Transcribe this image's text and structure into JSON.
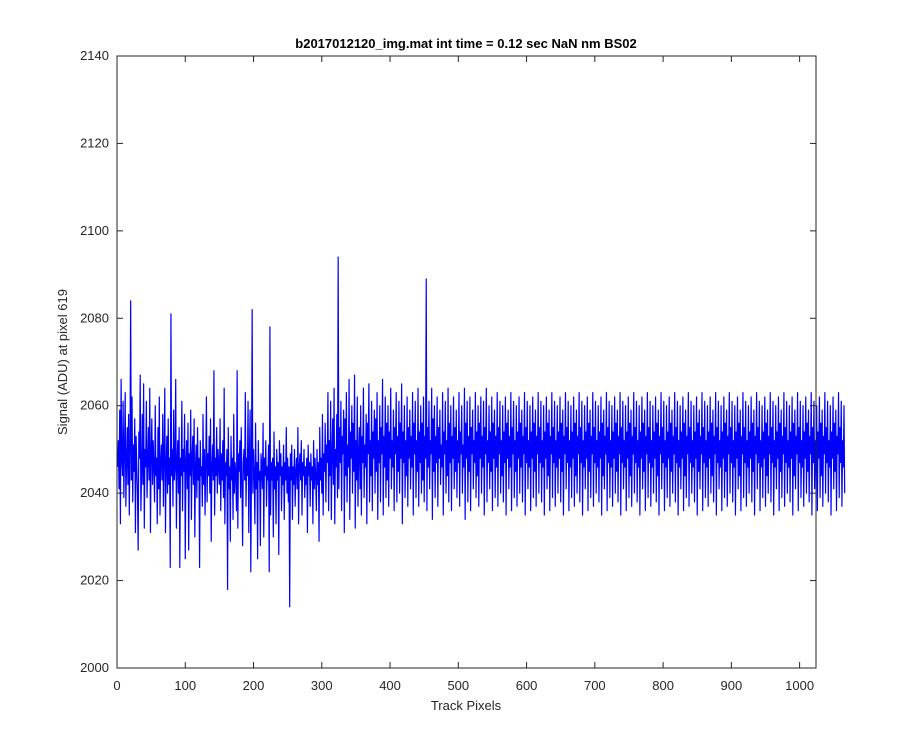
{
  "chart_data": {
    "type": "line",
    "title": "b2017012120_img.mat int time = 0.12 sec  NaN nm BS02",
    "xlabel": "Track Pixels",
    "ylabel": "Signal (ADU) at pixel 619",
    "xlim": [
      0,
      1024
    ],
    "ylim": [
      2000,
      2140
    ],
    "xticks": [
      0,
      100,
      200,
      300,
      400,
      500,
      600,
      700,
      800,
      900,
      1000
    ],
    "yticks": [
      2000,
      2020,
      2040,
      2060,
      2080,
      2100,
      2120,
      2140
    ],
    "grid": false,
    "legend": "none",
    "series": [
      {
        "color": "#0000ff",
        "x_start": 1,
        "x_step": 1,
        "values": [
          2046,
          2052,
          2041,
          2059,
          2033,
          2066,
          2048,
          2044,
          2061,
          2039,
          2050,
          2063,
          2037,
          2047,
          2055,
          2042,
          2058,
          2035,
          2049,
          2084,
          2043,
          2062,
          2038,
          2051,
          2045,
          2057,
          2031,
          2053,
          2046,
          2040,
          2027,
          2054,
          2048,
          2067,
          2036,
          2044,
          2058,
          2042,
          2065,
          2032,
          2050,
          2046,
          2061,
          2039,
          2047,
          2055,
          2043,
          2064,
          2031,
          2049,
          2057,
          2042,
          2052,
          2046,
          2038,
          2060,
          2044,
          2048,
          2033,
          2055,
          2041,
          2062,
          2035,
          2047,
          2051,
          2043,
          2058,
          2037,
          2049,
          2064,
          2031,
          2046,
          2053,
          2040,
          2057,
          2042,
          2048,
          2023,
          2081,
          2044,
          2050,
          2037,
          2059,
          2043,
          2046,
          2066,
          2032,
          2047,
          2052,
          2040,
          2055,
          2023,
          2048,
          2044,
          2061,
          2036,
          2050,
          2045,
          2058,
          2025,
          2047,
          2052,
          2041,
          2056,
          2027,
          2049,
          2044,
          2059,
          2034,
          2048,
          2053,
          2042,
          2057,
          2030,
          2046,
          2051,
          2039,
          2055,
          2043,
          2048,
          2023,
          2052,
          2044,
          2046,
          2037,
          2058,
          2042,
          2050,
          2035,
          2047,
          2062,
          2038,
          2049,
          2044,
          2053,
          2040,
          2057,
          2029,
          2046,
          2051,
          2043,
          2068,
          2035,
          2048,
          2044,
          2055,
          2040,
          2050,
          2046,
          2042,
          2057,
          2036,
          2049,
          2043,
          2052,
          2039,
          2064,
          2033,
          2047,
          2044,
          2050,
          2018,
          2055,
          2041,
          2046,
          2029,
          2053,
          2043,
          2048,
          2034,
          2058,
          2040,
          2047,
          2044,
          2036,
          2068,
          2032,
          2049,
          2045,
          2052,
          2039,
          2055,
          2042,
          2028,
          2047,
          2050,
          2043,
          2063,
          2037,
          2048,
          2044,
          2061,
          2031,
          2049,
          2059,
          2022,
          2046,
          2082,
          2040,
          2050,
          2044,
          2033,
          2056,
          2041,
          2047,
          2025,
          2052,
          2043,
          2045,
          2028,
          2049,
          2046,
          2041,
          2056,
          2030,
          2048,
          2044,
          2052,
          2037,
          2046,
          2043,
          2051,
          2022,
          2078,
          2035,
          2047,
          2043,
          2048,
          2030,
          2054,
          2041,
          2046,
          2033,
          2050,
          2043,
          2047,
          2026,
          2052,
          2044,
          2049,
          2036,
          2046,
          2042,
          2051,
          2034,
          2047,
          2043,
          2055,
          2040,
          2048,
          2038,
          2046,
          2014,
          2049,
          2043,
          2051,
          2034,
          2046,
          2042,
          2050,
          2037,
          2045,
          2048,
          2041,
          2055,
          2033,
          2046,
          2049,
          2043,
          2052,
          2035,
          2047,
          2044,
          2050,
          2039,
          2046,
          2042,
          2048,
          2031,
          2051,
          2044,
          2047,
          2037,
          2049,
          2043,
          2046,
          2033,
          2052,
          2041,
          2048,
          2044,
          2036,
          2050,
          2042,
          2047,
          2029,
          2055,
          2043,
          2048,
          2040,
          2058,
          2035,
          2049,
          2045,
          2056,
          2038,
          2051,
          2047,
          2063,
          2036,
          2052,
          2044,
          2061,
          2034,
          2049,
          2057,
          2042,
          2064,
          2033,
          2050,
          2046,
          2058,
          2039,
          2094,
          2041,
          2055,
          2047,
          2061,
          2036,
          2053,
          2049,
          2059,
          2031,
          2057,
          2044,
          2063,
          2038,
          2051,
          2046,
          2066,
          2034,
          2054,
          2048,
          2060,
          2040,
          2056,
          2045,
          2067,
          2032,
          2052,
          2043,
          2062,
          2037,
          2049,
          2055,
          2041,
          2060,
          2035,
          2053,
          2047,
          2064,
          2039,
          2051,
          2046,
          2058,
          2033,
          2056,
          2049,
          2065,
          2038,
          2052,
          2044,
          2061,
          2036,
          2054,
          2048,
          2059,
          2040,
          2057,
          2045,
          2063,
          2034,
          2052,
          2047,
          2060,
          2038,
          2055,
          2049,
          2066,
          2035,
          2053,
          2046,
          2062,
          2039,
          2056,
          2043,
          2060,
          2037,
          2054,
          2048,
          2064,
          2041,
          2052,
          2046,
          2059,
          2036,
          2055,
          2049,
          2063,
          2038,
          2053,
          2045,
          2061,
          2040,
          2056,
          2048,
          2065,
          2033,
          2054,
          2047,
          2060,
          2039,
          2052,
          2044,
          2062,
          2037,
          2055,
          2048,
          2059,
          2041,
          2053,
          2046,
          2063,
          2035,
          2056,
          2049,
          2061,
          2039,
          2052,
          2045,
          2064,
          2037,
          2054,
          2047,
          2060,
          2040,
          2056,
          2043,
          2062,
          2038,
          2053,
          2048,
          2089,
          2036,
          2055,
          2046,
          2061,
          2041,
          2052,
          2049,
          2064,
          2034,
          2057,
          2045,
          2060,
          2039,
          2053,
          2047,
          2062,
          2037,
          2055,
          2048,
          2059,
          2042,
          2051,
          2046,
          2063,
          2035,
          2054,
          2049,
          2061,
          2040,
          2052,
          2044,
          2064,
          2038,
          2056,
          2047,
          2060,
          2036,
          2053,
          2048,
          2062,
          2041,
          2055,
          2045,
          2059,
          2039,
          2052,
          2047,
          2063,
          2037,
          2054,
          2049,
          2060,
          2040,
          2051,
          2046,
          2064,
          2034,
          2056,
          2048,
          2061,
          2038,
          2053,
          2045,
          2062,
          2036,
          2055,
          2049,
          2059,
          2041,
          2052,
          2047,
          2063,
          2039,
          2054,
          2044,
          2060,
          2037,
          2056,
          2048,
          2062,
          2040,
          2053,
          2046,
          2061,
          2035,
          2055,
          2049,
          2064,
          2038,
          2052,
          2047,
          2060,
          2041,
          2054,
          2045,
          2062,
          2036,
          2056,
          2048,
          2059,
          2039,
          2053,
          2046,
          2063,
          2037,
          2055,
          2049,
          2061,
          2040,
          2052,
          2044,
          2060,
          2038,
          2054,
          2047,
          2062,
          2035,
          2056,
          2048,
          2059,
          2041,
          2053,
          2046,
          2063,
          2036,
          2055,
          2049,
          2061,
          2039,
          2052,
          2045,
          2060,
          2037,
          2054,
          2048,
          2062,
          2040,
          2056,
          2046,
          2059,
          2038,
          2053,
          2049,
          2063,
          2035,
          2055,
          2047,
          2061,
          2041,
          2052,
          2046,
          2060,
          2036,
          2054,
          2048,
          2062,
          2039,
          2056,
          2045,
          2059,
          2037,
          2053,
          2049,
          2063,
          2040,
          2055,
          2047,
          2061,
          2038,
          2052,
          2046,
          2060,
          2035,
          2054,
          2048,
          2062,
          2041,
          2056,
          2044,
          2059,
          2036,
          2053,
          2049,
          2063,
          2039,
          2055,
          2047,
          2061,
          2037,
          2052,
          2046,
          2060,
          2040,
          2054,
          2048,
          2062,
          2038,
          2056,
          2045,
          2059,
          2035,
          2053,
          2049,
          2063,
          2041,
          2055,
          2047,
          2061,
          2036,
          2052,
          2046,
          2060,
          2039,
          2054,
          2048,
          2062,
          2037,
          2056,
          2044,
          2059,
          2040,
          2053,
          2049,
          2063,
          2038,
          2055,
          2047,
          2061,
          2035,
          2052,
          2046,
          2060,
          2041,
          2054,
          2048,
          2062,
          2036,
          2056,
          2045,
          2059,
          2039,
          2053,
          2049,
          2063,
          2037,
          2055,
          2047,
          2061,
          2040,
          2052,
          2046,
          2060,
          2038,
          2054,
          2048,
          2062,
          2035,
          2056,
          2044,
          2059,
          2041,
          2053,
          2049,
          2063,
          2036,
          2055,
          2047,
          2061,
          2039,
          2052,
          2046,
          2060,
          2037,
          2054,
          2048,
          2062,
          2040,
          2056,
          2045,
          2059,
          2038,
          2053,
          2049,
          2063,
          2035,
          2055,
          2047,
          2061,
          2041,
          2052,
          2046,
          2060,
          2036,
          2054,
          2048,
          2062,
          2039,
          2056,
          2044,
          2059,
          2037,
          2053,
          2049,
          2063,
          2040,
          2055,
          2047,
          2061,
          2038,
          2052,
          2046,
          2060,
          2035,
          2054,
          2048,
          2062,
          2041,
          2056,
          2045,
          2059,
          2036,
          2053,
          2049,
          2063,
          2039,
          2055,
          2047,
          2061,
          2037,
          2052,
          2046,
          2060,
          2040,
          2054,
          2048,
          2062,
          2038,
          2056,
          2044,
          2059,
          2035,
          2053,
          2049,
          2063,
          2041,
          2055,
          2047,
          2061,
          2036,
          2052,
          2046,
          2060,
          2039,
          2054,
          2048,
          2062,
          2037,
          2056,
          2045,
          2059,
          2040,
          2053,
          2049,
          2063,
          2038,
          2055,
          2047,
          2061,
          2035,
          2052,
          2046,
          2060,
          2041,
          2054,
          2048,
          2062,
          2036,
          2056,
          2044,
          2059,
          2039,
          2053,
          2049,
          2063,
          2037,
          2055,
          2047,
          2061,
          2040,
          2052,
          2046,
          2060,
          2038,
          2054,
          2048,
          2062,
          2035,
          2056,
          2045,
          2059,
          2041,
          2053,
          2049,
          2063,
          2036,
          2055,
          2047,
          2061,
          2039,
          2052,
          2046,
          2060,
          2037,
          2054,
          2048,
          2062,
          2040,
          2056,
          2044,
          2059,
          2038,
          2053,
          2049,
          2063,
          2035,
          2055,
          2047,
          2061,
          2041,
          2052,
          2046,
          2060,
          2036,
          2054,
          2048,
          2062,
          2039,
          2056,
          2045,
          2059,
          2037,
          2053,
          2049,
          2063,
          2040,
          2055,
          2047,
          2061,
          2038,
          2052,
          2046,
          2060,
          2035,
          2054,
          2048,
          2062,
          2041,
          2056,
          2044,
          2059,
          2036,
          2053,
          2049,
          2063,
          2039,
          2055,
          2047,
          2061,
          2037,
          2052,
          2046,
          2060,
          2040,
          2054,
          2048,
          2062,
          2038,
          2056,
          2045,
          2059,
          2035,
          2053,
          2049,
          2063,
          2041,
          2055,
          2047,
          2061,
          2036,
          2052,
          2046,
          2060,
          2039,
          2054,
          2048,
          2062,
          2037,
          2056,
          2044,
          2059,
          2040,
          2053,
          2049,
          2063,
          2038,
          2055,
          2047,
          2061,
          2035,
          2052,
          2046,
          2060,
          2041,
          2054,
          2048,
          2062,
          2036,
          2056,
          2045,
          2059,
          2039,
          2053,
          2049,
          2063,
          2037,
          2055,
          2047,
          2061,
          2040,
          2052,
          2046,
          2060,
          2038,
          2054,
          2048,
          2062,
          2035,
          2056,
          2044,
          2059,
          2041,
          2053,
          2049,
          2063,
          2036,
          2055,
          2047,
          2061,
          2039,
          2052,
          2046,
          2060,
          2037,
          2054,
          2048,
          2062,
          2040,
          2056,
          2045,
          2059,
          2038,
          2053,
          2049,
          2063,
          2035,
          2055,
          2047,
          2061,
          2041,
          2052,
          2046,
          2060,
          2036,
          2054,
          2048,
          2062,
          2039,
          2056,
          2044,
          2059,
          2037,
          2053,
          2049,
          2063,
          2040,
          2055,
          2047,
          2061,
          2038,
          2052,
          2046,
          2060,
          2035,
          2054,
          2048,
          2062,
          2041,
          2056,
          2045,
          2059,
          2036,
          2053,
          2049,
          2063,
          2039,
          2055,
          2047,
          2061,
          2037,
          2052,
          2046,
          2060,
          2040
        ]
      }
    ]
  }
}
